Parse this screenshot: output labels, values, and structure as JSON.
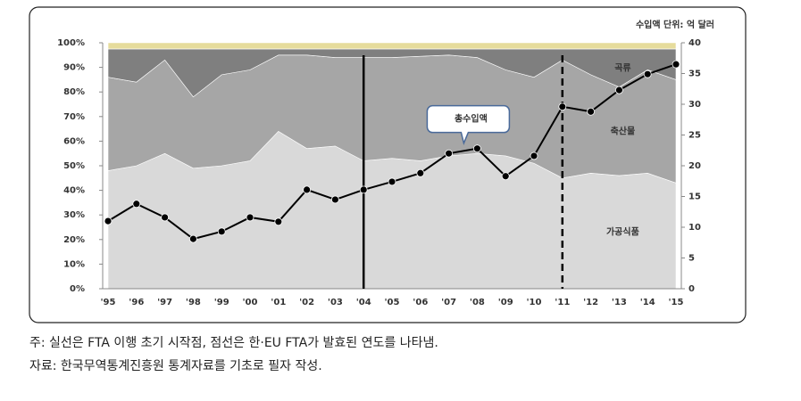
{
  "chart_data": {
    "type": "stacked_area",
    "y2label": "수입액 단위: 억 달러",
    "categories": [
      "'95",
      "'96",
      "'97",
      "'98",
      "'99",
      "'00",
      "'01",
      "'02",
      "'03",
      "'04",
      "'05",
      "'06",
      "'07",
      "'08",
      "'09",
      "'10",
      "'11",
      "'12",
      "'13",
      "'14",
      "'15"
    ],
    "series": [
      {
        "name": "가공식품",
        "color": "#d9d9d9",
        "values": [
          48,
          50,
          55,
          49,
          50,
          52,
          64,
          57,
          58,
          52,
          53,
          52,
          54,
          55,
          54,
          51,
          45,
          47,
          46,
          47,
          43
        ]
      },
      {
        "name": "축산물",
        "color": "#a6a6a6",
        "values": [
          38,
          34,
          38,
          29,
          37,
          37,
          31,
          38,
          36,
          42,
          41,
          42.5,
          41,
          39,
          35,
          35,
          48,
          40,
          36,
          42,
          42
        ]
      },
      {
        "name": "곡류",
        "color": "#7f7f7f",
        "values": [
          11.5,
          13.5,
          4.5,
          19.5,
          10.5,
          8.5,
          2.5,
          2.5,
          3.5,
          3.5,
          3.5,
          3,
          2.5,
          3.5,
          8.5,
          11.5,
          4.5,
          10.5,
          15.5,
          8.5,
          12.5
        ]
      },
      {
        "color": "#e6dc9c",
        "values": [
          2.5,
          2.5,
          2.5,
          2.5,
          2.5,
          2.5,
          2.5,
          2.5,
          2.5,
          2.5,
          2.5,
          2.5,
          2.5,
          2.5,
          2.5,
          2.5,
          2.5,
          2.5,
          2.5,
          2.5,
          2.5
        ]
      },
      {
        "name": "총수입액",
        "type": "line",
        "axis": "y2",
        "color": "#000000",
        "values": [
          11,
          13.8,
          11.6,
          8.1,
          9.3,
          11.6,
          10.9,
          16.1,
          14.5,
          16.1,
          17.4,
          18.8,
          22,
          22.8,
          18.3,
          21.6,
          29.6,
          28.8,
          32.3,
          34.9,
          36.5
        ]
      }
    ],
    "ylim": [
      0,
      100
    ],
    "yticks": [
      {
        "value": 0,
        "label": "0%"
      },
      {
        "value": 10,
        "label": "10%"
      },
      {
        "value": 20,
        "label": "20%"
      },
      {
        "value": 30,
        "label": "30%"
      },
      {
        "value": 40,
        "label": "40%"
      },
      {
        "value": 50,
        "label": "50%"
      },
      {
        "value": 60,
        "label": "60%"
      },
      {
        "value": 70,
        "label": "70%"
      },
      {
        "value": 80,
        "label": "80%"
      },
      {
        "value": 90,
        "label": "90%"
      },
      {
        "value": 100,
        "label": "100%"
      }
    ],
    "y2lim": [
      0,
      40
    ],
    "y2ticks": [
      0,
      5,
      10,
      15,
      20,
      25,
      30,
      35,
      40
    ],
    "vlines": [
      {
        "index": 9,
        "dashed": false
      },
      {
        "index": 16,
        "dashed": true
      }
    ],
    "notes": [
      "주: 실선은 FTA 이행 초기 시작점, 점선은 한·EU FTA가 발효된 연도를 나타냄.",
      "자료: 한국무역통계진흥원 통계자료를 기초로 필자 작성."
    ]
  }
}
